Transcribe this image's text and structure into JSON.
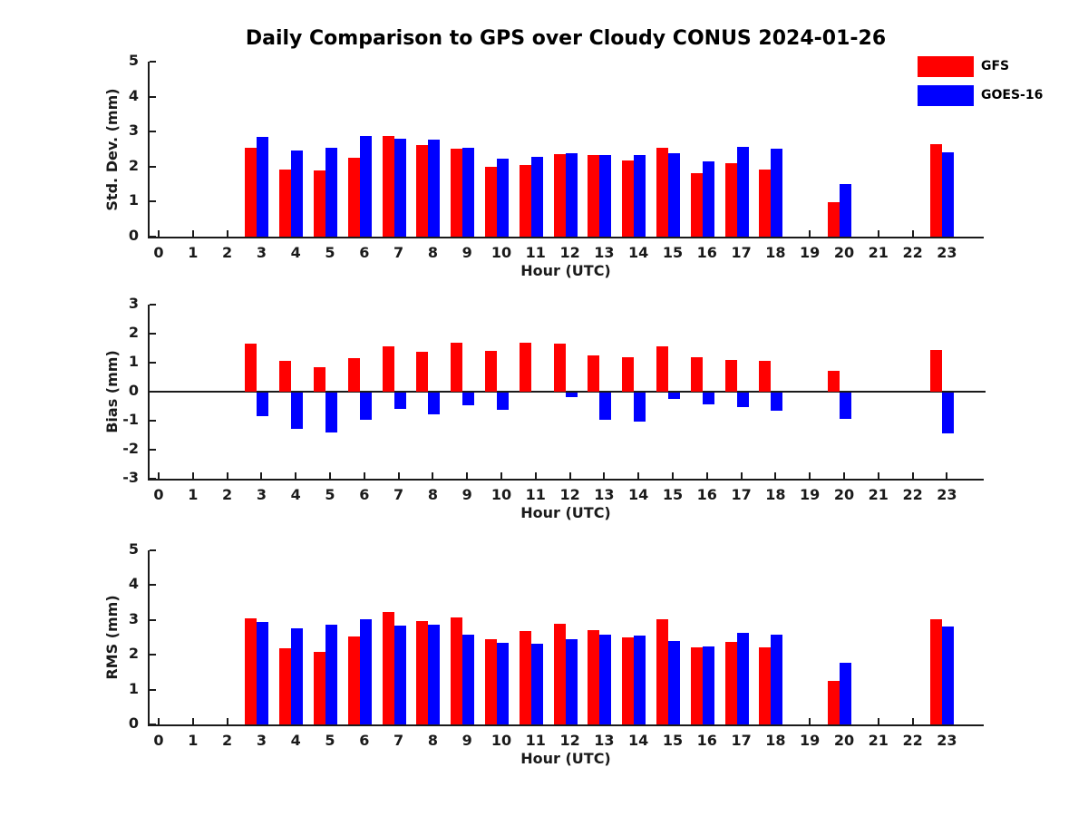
{
  "title": "Daily Comparison to GPS over Cloudy CONUS 2024-01-26",
  "legend": {
    "items": [
      {
        "label": "GFS",
        "color": "#ff0000"
      },
      {
        "label": "GOES-16",
        "color": "#0000ff"
      }
    ]
  },
  "chart_data": [
    {
      "type": "bar",
      "panel": "std-dev",
      "ylabel": "Std. Dev. (mm)",
      "xlabel": "Hour (UTC)",
      "ylim": [
        0,
        5
      ],
      "yticks": [
        0,
        1,
        2,
        3,
        4,
        5
      ],
      "grid": false,
      "zero_line": false,
      "legend_position": "top-right-outside",
      "categories": [
        0,
        1,
        2,
        3,
        4,
        5,
        6,
        7,
        8,
        9,
        10,
        11,
        12,
        13,
        14,
        15,
        16,
        17,
        18,
        19,
        20,
        21,
        22,
        23
      ],
      "series": [
        {
          "name": "GFS",
          "color": "#ff0000",
          "values": [
            null,
            null,
            null,
            2.55,
            1.92,
            1.9,
            2.25,
            2.87,
            2.62,
            2.52,
            2.0,
            2.04,
            2.35,
            2.34,
            2.18,
            2.55,
            1.82,
            2.09,
            1.92,
            null,
            0.99,
            null,
            null,
            2.64
          ]
        },
        {
          "name": "GOES-16",
          "color": "#0000ff",
          "values": [
            null,
            null,
            null,
            2.84,
            2.47,
            2.53,
            2.88,
            2.8,
            2.78,
            2.53,
            2.22,
            2.27,
            2.39,
            2.34,
            2.32,
            2.39,
            2.15,
            2.56,
            2.51,
            null,
            1.49,
            null,
            null,
            2.41
          ]
        }
      ]
    },
    {
      "type": "bar",
      "panel": "bias",
      "ylabel": "Bias (mm)",
      "xlabel": "Hour (UTC)",
      "ylim": [
        -3,
        3
      ],
      "yticks": [
        -3,
        -2,
        -1,
        0,
        1,
        2,
        3
      ],
      "grid": false,
      "zero_line": true,
      "categories": [
        0,
        1,
        2,
        3,
        4,
        5,
        6,
        7,
        8,
        9,
        10,
        11,
        12,
        13,
        14,
        15,
        16,
        17,
        18,
        19,
        20,
        21,
        22,
        23
      ],
      "series": [
        {
          "name": "GFS",
          "color": "#ff0000",
          "values": [
            null,
            null,
            null,
            1.66,
            1.06,
            0.85,
            1.15,
            1.55,
            1.38,
            1.7,
            1.41,
            1.7,
            1.66,
            1.24,
            1.19,
            1.57,
            1.18,
            1.08,
            1.06,
            null,
            0.72,
            null,
            null,
            1.43
          ]
        },
        {
          "name": "GOES-16",
          "color": "#0000ff",
          "values": [
            null,
            null,
            null,
            -0.8,
            -1.26,
            -1.36,
            -0.94,
            -0.55,
            -0.76,
            -0.45,
            -0.58,
            0,
            -0.16,
            -0.94,
            -1.0,
            -0.21,
            -0.41,
            -0.5,
            -0.62,
            null,
            -0.91,
            null,
            null,
            -1.4
          ]
        }
      ]
    },
    {
      "type": "bar",
      "panel": "rms",
      "ylabel": "RMS (mm)",
      "xlabel": "Hour (UTC)",
      "ylim": [
        0,
        5
      ],
      "yticks": [
        0,
        1,
        2,
        3,
        4,
        5
      ],
      "grid": false,
      "zero_line": false,
      "categories": [
        0,
        1,
        2,
        3,
        4,
        5,
        6,
        7,
        8,
        9,
        10,
        11,
        12,
        13,
        14,
        15,
        16,
        17,
        18,
        19,
        20,
        21,
        22,
        23
      ],
      "series": [
        {
          "name": "GFS",
          "color": "#ff0000",
          "values": [
            null,
            null,
            null,
            3.05,
            2.18,
            2.09,
            2.52,
            3.22,
            2.96,
            3.07,
            2.46,
            2.69,
            2.89,
            2.7,
            2.5,
            3.01,
            2.22,
            2.38,
            2.21,
            null,
            1.24,
            null,
            null,
            3.03
          ]
        },
        {
          "name": "GOES-16",
          "color": "#0000ff",
          "values": [
            null,
            null,
            null,
            2.94,
            2.76,
            2.86,
            3.01,
            2.85,
            2.87,
            2.58,
            2.34,
            2.31,
            2.44,
            2.57,
            2.54,
            2.4,
            2.25,
            2.64,
            2.58,
            null,
            1.77,
            null,
            null,
            2.82
          ]
        }
      ]
    }
  ]
}
